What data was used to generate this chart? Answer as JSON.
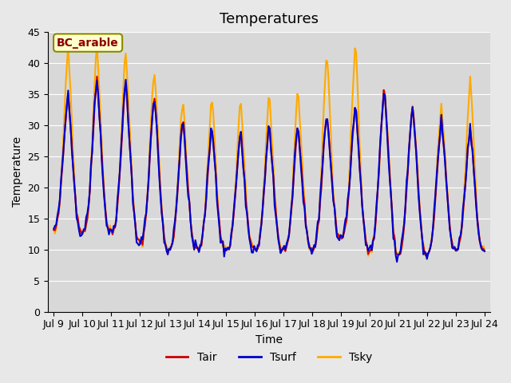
{
  "title": "Temperatures",
  "xlabel": "Time",
  "ylabel": "Temperature",
  "legend_label": "BC_arable",
  "series_labels": [
    "Tair",
    "Tsurf",
    "Tsky"
  ],
  "series_colors": [
    "#cc0000",
    "#0000cc",
    "#ffaa00"
  ],
  "ylim": [
    0,
    45
  ],
  "yticks": [
    0,
    5,
    10,
    15,
    20,
    25,
    30,
    35,
    40,
    45
  ],
  "background_color": "#e8e8e8",
  "plot_bg_color": "#d8d8d8",
  "legend_box_color": "#ffffcc",
  "legend_box_edge": "#8b8b00",
  "title_fontsize": 13,
  "label_fontsize": 10,
  "tick_fontsize": 9,
  "line_width": 1.5,
  "n_points": 360,
  "start_day": 9,
  "end_day": 24,
  "days": [
    "Jul 9",
    "Jul 10",
    "Jul 11",
    "Jul 12",
    "Jul 13",
    "Jul 14",
    "Jul 15",
    "Jul 16",
    "Jul 17",
    "Jul 18",
    "Jul 19",
    "Jul 20",
    "Jul 21",
    "Jul 22",
    "Jul 23",
    "Jul 24"
  ]
}
